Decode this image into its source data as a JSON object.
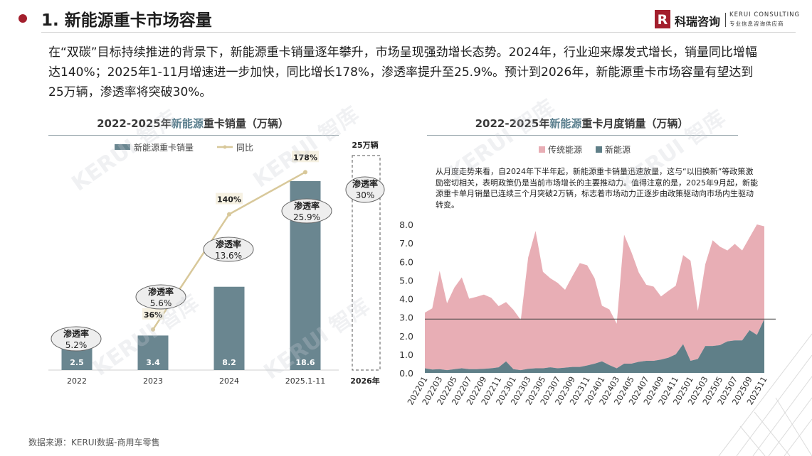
{
  "header": {
    "title": "1. 新能源重卡市场容量",
    "logo": {
      "name_cn": "科瑞咨询",
      "name_en": "KERUI CONSULTING",
      "tagline": "专业信息咨询供应商",
      "mark": "R"
    }
  },
  "intro_text": "在“双碳”目标持续推进的背景下，新能源重卡销量逐年攀升，市场呈现强劲增长态势。2024年，行业迎来爆发式增长，销量同比增幅达140%；2025年1-11月增速进一步加快，同比增长178%，渗透率提升至25.9%。预计到2026年，新能源重卡市场容量有望达到25万辆，渗透率将突破30%。",
  "watermark_text": "KERUI 智库",
  "footer": {
    "source": "数据来源：KERUI数据-商用车零售"
  },
  "colors": {
    "accent": "#a31f2d",
    "bar": "#6a8690",
    "line": "#d8c89a",
    "pink": "#e8aeb5",
    "teal": "#5f7f88"
  },
  "chart_data": [
    {
      "type": "bar",
      "title_prefix": "2022-2025年",
      "title_highlight": "新能源",
      "title_suffix": "重卡销量（万辆）",
      "legend": [
        "新能源重卡销量",
        "同比"
      ],
      "categories": [
        "2022",
        "2023",
        "2024",
        "2025.1-11"
      ],
      "series": [
        {
          "name": "新能源重卡销量",
          "type": "bar",
          "values": [
            2.5,
            3.4,
            8.2,
            18.6
          ],
          "labels": [
            "2.5",
            "3.4",
            "8.2",
            "18.6"
          ]
        },
        {
          "name": "同比",
          "type": "line",
          "values": [
            null,
            36,
            140,
            178
          ],
          "labels": [
            "",
            "36%",
            "140%",
            "178%"
          ]
        }
      ],
      "penetration": {
        "label": "渗透率",
        "values": [
          "5.2%",
          "5.6%",
          "13.6%",
          "25.9%"
        ]
      },
      "forecast": {
        "category": "2026年",
        "top_label": "25万辆",
        "value": 25,
        "penetration_label": "渗透率",
        "penetration": "30%"
      },
      "ylim": [
        0,
        20
      ]
    },
    {
      "type": "area",
      "title_prefix": "2022-2025年",
      "title_highlight": "新能源",
      "title_suffix": "重卡月度销量（万辆）",
      "legend": [
        "传统能源",
        "新能源"
      ],
      "annotation": "从月度走势来看，自2024年下半年起，新能源重卡销量迅速放量，这与“以旧换新”等政策激励密切相关，表明政策仍是当前市场增长的主要推动力。值得注意的是，2025年9月起，新能源重卡单月销量已连续三个月突破2万辆，标志着市场动力正逐步由政策驱动向市场内生驱动转变。",
      "x": [
        "202201",
        "202202",
        "202203",
        "202204",
        "202205",
        "202206",
        "202207",
        "202208",
        "202209",
        "202210",
        "202211",
        "202212",
        "202301",
        "202302",
        "202303",
        "202304",
        "202305",
        "202306",
        "202307",
        "202308",
        "202309",
        "202310",
        "202311",
        "202312",
        "202401",
        "202402",
        "202403",
        "202404",
        "202405",
        "202406",
        "202407",
        "202408",
        "202409",
        "202410",
        "202411",
        "202412",
        "202501",
        "202502",
        "202503",
        "202504",
        "202505",
        "202506",
        "202507",
        "202508",
        "202509",
        "202510",
        "202511"
      ],
      "xtick_labels": [
        "202201",
        "202203",
        "202205",
        "202207",
        "202209",
        "202211",
        "202301",
        "202303",
        "202305",
        "202307",
        "202309",
        "202311",
        "202401",
        "202403",
        "202405",
        "202407",
        "202409",
        "202411",
        "202501",
        "202503",
        "202505",
        "202507",
        "202509",
        "202511"
      ],
      "yticks": [
        "0.0",
        "1.0",
        "2.0",
        "3.0",
        "4.0",
        "5.0",
        "6.0",
        "7.0",
        "8.0"
      ],
      "ylim": [
        0,
        8
      ],
      "reference_line": 2.9,
      "series": [
        {
          "name": "新能源",
          "values": [
            0.25,
            0.18,
            0.2,
            0.15,
            0.2,
            0.25,
            0.2,
            0.2,
            0.22,
            0.25,
            0.3,
            0.62,
            0.2,
            0.15,
            0.22,
            0.25,
            0.25,
            0.3,
            0.25,
            0.28,
            0.32,
            0.32,
            0.4,
            0.5,
            0.62,
            0.42,
            0.25,
            0.5,
            0.5,
            0.6,
            0.65,
            0.65,
            0.72,
            0.82,
            1.0,
            1.55,
            0.65,
            0.75,
            1.45,
            1.45,
            1.5,
            1.7,
            1.75,
            1.75,
            2.3,
            2.05,
            2.9
          ]
        },
        {
          "name": "传统能源",
          "values": [
            3.0,
            3.3,
            5.3,
            3.6,
            4.4,
            4.9,
            3.8,
            3.9,
            4.0,
            3.8,
            3.3,
            3.2,
            3.2,
            2.7,
            6.0,
            7.4,
            5.2,
            4.8,
            4.6,
            4.2,
            4.9,
            5.6,
            5.4,
            4.6,
            3.0,
            3.0,
            2.4,
            6.95,
            6.0,
            4.8,
            4.1,
            4.0,
            3.4,
            3.6,
            3.7,
            4.8,
            5.4,
            2.6,
            4.4,
            5.7,
            5.3,
            4.9,
            5.2,
            4.85,
            5.0,
            5.95,
            5.0
          ]
        }
      ]
    }
  ]
}
